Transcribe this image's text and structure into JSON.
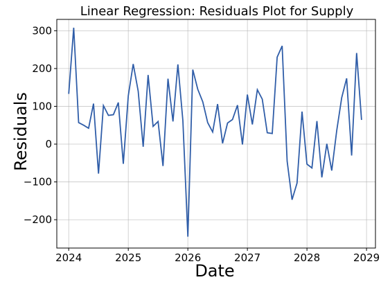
{
  "chart_data": {
    "type": "line",
    "title": "Linear Regression: Residuals Plot for Supply",
    "xlabel": "Date",
    "ylabel": "Residuals",
    "xlim": [
      2023.8,
      2029.15
    ],
    "ylim": [
      -275,
      330
    ],
    "x_ticks": [
      2024,
      2025,
      2026,
      2027,
      2028,
      2029
    ],
    "x_tick_labels": [
      "2024",
      "2025",
      "2026",
      "2027",
      "2028",
      "2029"
    ],
    "y_ticks": [
      -200,
      -100,
      0,
      100,
      200,
      300
    ],
    "y_tick_labels": [
      "−200",
      "−100",
      "0",
      "100",
      "200",
      "300"
    ],
    "grid": true,
    "line_color": "#2f5da8",
    "series": [
      {
        "x": [
          2024.0,
          2024.0833,
          2024.1667,
          2024.25,
          2024.3333,
          2024.4167,
          2024.5,
          2024.5833,
          2024.6667,
          2024.75,
          2024.8333,
          2024.9167,
          2025.0,
          2025.0833,
          2025.1667,
          2025.25,
          2025.3333,
          2025.4167,
          2025.5,
          2025.5833,
          2025.6667,
          2025.75,
          2025.8333,
          2025.9167,
          2026.0,
          2026.0833,
          2026.1667,
          2026.25,
          2026.3333,
          2026.4167,
          2026.5,
          2026.5833,
          2026.6667,
          2026.75,
          2026.8333,
          2026.9167,
          2027.0,
          2027.0833,
          2027.1667,
          2027.25,
          2027.3333,
          2027.4167,
          2027.5,
          2027.5833,
          2027.6667,
          2027.75,
          2027.8333,
          2027.9167,
          2028.0,
          2028.0833,
          2028.1667,
          2028.25,
          2028.3333,
          2028.4167,
          2028.5,
          2028.5833,
          2028.6667,
          2028.75,
          2028.8333,
          2028.9167
        ],
        "values": [
          133,
          308,
          57,
          50,
          42,
          107,
          -78,
          102,
          76,
          78,
          110,
          -52,
          128,
          212,
          140,
          -7,
          183,
          47,
          60,
          -58,
          173,
          60,
          211,
          62,
          -245,
          197,
          145,
          112,
          57,
          32,
          106,
          2,
          56,
          65,
          103,
          -1,
          131,
          52,
          144,
          119,
          30,
          28,
          230,
          260,
          -45,
          -147,
          -103,
          86,
          -53,
          -63,
          61,
          -88,
          1,
          -70,
          36,
          123,
          174,
          -30,
          241,
          64
        ]
      }
    ]
  }
}
